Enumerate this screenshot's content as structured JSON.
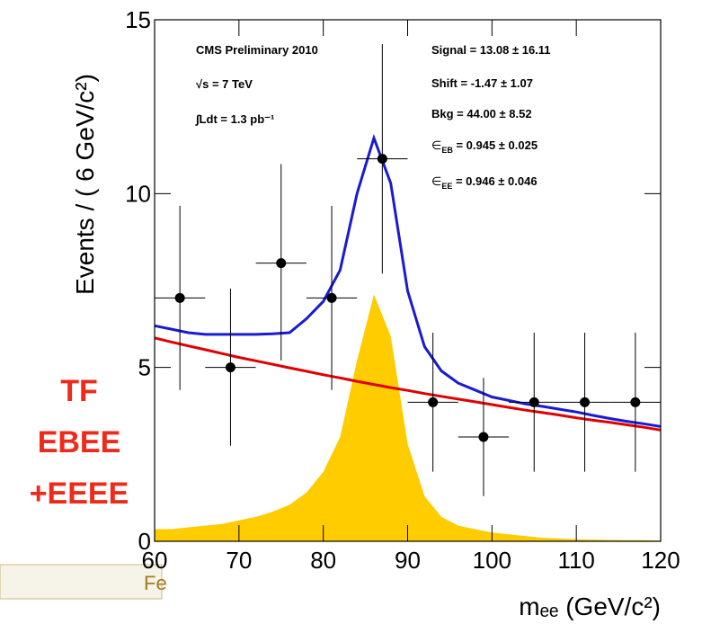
{
  "chart_data": {
    "type": "fit",
    "y_label": "Events / ( 6 GeV/c²)",
    "x_label": "mₑₑ (GeV/c²)",
    "side_text": [
      "TF",
      "EBEE",
      "+EEEE"
    ],
    "footer": "Fe",
    "annotations_left": [
      "CMS Preliminary 2010",
      "√s = 7 TeV",
      "∫Ldt = 1.3 pb⁻¹"
    ],
    "annotations_right": [
      {
        "text": "Signal = 13.08 ± 16.11"
      },
      {
        "text": "Shift = -1.47 ± 1.07"
      },
      {
        "text": "Bkg = 44.00 ± 8.52"
      },
      {
        "sym": "∈",
        "sub": "EB",
        "text": " = 0.945 ± 0.025"
      },
      {
        "sym": "∈",
        "sub": "EE",
        "text": " = 0.946 ± 0.046"
      }
    ],
    "xlim": [
      60,
      120
    ],
    "xticks": [
      60,
      70,
      80,
      90,
      100,
      110,
      120
    ],
    "ylim": [
      0,
      15
    ],
    "yticks": [
      0,
      5,
      10,
      15
    ],
    "points": {
      "color": "#000000",
      "x": [
        63,
        69,
        75,
        81,
        87,
        93,
        99,
        105,
        111,
        117
      ],
      "values": [
        7,
        5,
        8,
        7,
        11,
        4,
        3,
        4,
        4,
        4
      ],
      "err_high": [
        2.65,
        2.27,
        2.85,
        2.65,
        3.3,
        2.0,
        1.7,
        2.0,
        2.0,
        2.0
      ],
      "err_low": [
        2.65,
        2.25,
        2.8,
        2.65,
        3.3,
        2.0,
        1.7,
        2.0,
        2.0,
        2.0
      ],
      "x_err": 3
    },
    "curve_x": [
      60,
      62,
      64,
      66,
      68,
      70,
      72,
      74,
      76,
      78,
      80,
      82,
      84,
      86,
      88,
      90,
      92,
      94,
      96,
      98,
      100,
      102,
      104,
      106,
      108,
      110,
      112,
      114,
      116,
      118,
      120
    ],
    "curves": [
      {
        "kind": "area",
        "color": "#ffcc00",
        "values": [
          0.35,
          0.35,
          0.4,
          0.45,
          0.5,
          0.6,
          0.7,
          0.85,
          1.05,
          1.4,
          2.0,
          3.0,
          5.2,
          7.1,
          5.9,
          2.8,
          1.3,
          0.7,
          0.45,
          0.35,
          0.25,
          0.2,
          0.15,
          0.1,
          0.08,
          0.06,
          0.05,
          0.04,
          0.03,
          0.03,
          0.02
        ]
      },
      {
        "kind": "line",
        "color": "#e00000",
        "values": [
          5.85,
          5.73,
          5.62,
          5.51,
          5.4,
          5.29,
          5.19,
          5.09,
          4.99,
          4.89,
          4.79,
          4.7,
          4.6,
          4.51,
          4.42,
          4.34,
          4.25,
          4.17,
          4.09,
          4.01,
          3.93,
          3.85,
          3.77,
          3.7,
          3.63,
          3.55,
          3.48,
          3.42,
          3.35,
          3.28,
          3.2
        ]
      },
      {
        "kind": "line",
        "color": "#1a1ad0",
        "values": [
          6.2,
          6.1,
          6.0,
          5.95,
          5.95,
          5.95,
          5.95,
          5.97,
          6.0,
          6.4,
          6.9,
          7.8,
          10.0,
          11.6,
          10.3,
          7.2,
          5.6,
          4.9,
          4.55,
          4.35,
          4.15,
          4.05,
          3.95,
          3.88,
          3.8,
          3.72,
          3.62,
          3.53,
          3.45,
          3.38,
          3.3
        ]
      }
    ]
  }
}
